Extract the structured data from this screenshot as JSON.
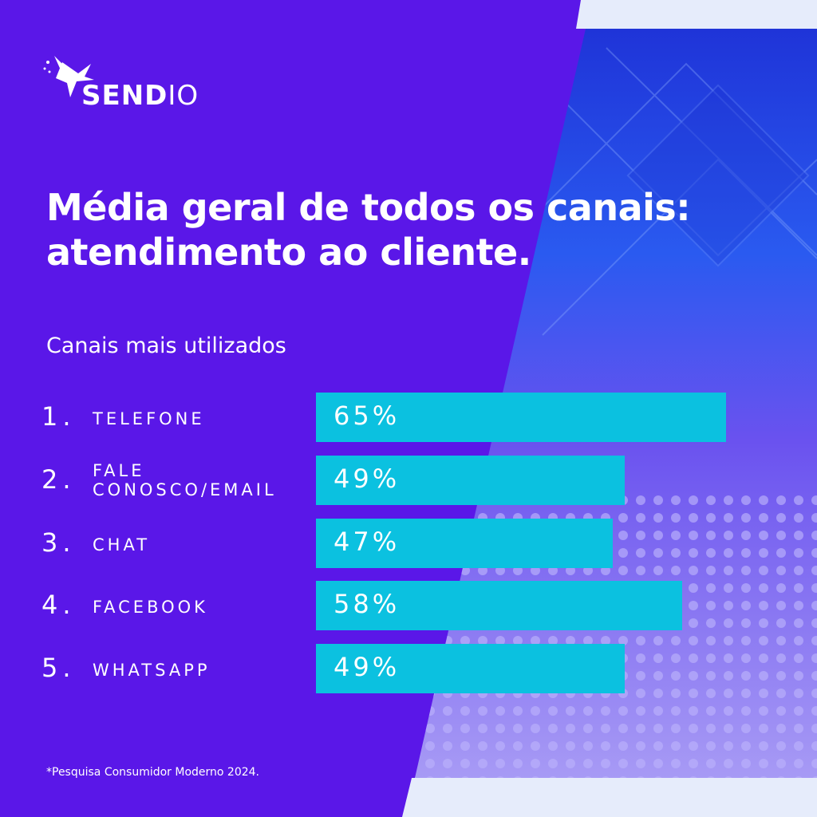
{
  "brand": {
    "logo_bold": "SEND",
    "logo_light": "IO"
  },
  "title_line1": "Média geral de todos os canais:",
  "title_line2": "atendimento ao cliente.",
  "subtitle": "Canais mais utilizados",
  "footnote": "*Pesquisa Consumidor Moderno 2024.",
  "colors": {
    "background": "#5a17e8",
    "bar": "#0bc1e0",
    "text": "#ffffff"
  },
  "chart_data": {
    "type": "bar",
    "orientation": "horizontal",
    "title": "Média geral de todos os canais: atendimento ao cliente.",
    "subtitle": "Canais mais utilizados",
    "rows": [
      {
        "rank": "1.",
        "label": "TELEFONE",
        "value": 65,
        "value_label": "65%"
      },
      {
        "rank": "2.",
        "label": "FALE\nCONOSCO/EMAIL",
        "value": 49,
        "value_label": "49%"
      },
      {
        "rank": "3.",
        "label": "CHAT",
        "value": 47,
        "value_label": "47%"
      },
      {
        "rank": "4.",
        "label": "FACEBOOK",
        "value": 58,
        "value_label": "58%"
      },
      {
        "rank": "5.",
        "label": "WHATSAPP",
        "value": 49,
        "value_label": "49%"
      }
    ],
    "xlim": [
      0,
      100
    ],
    "grid": false
  }
}
